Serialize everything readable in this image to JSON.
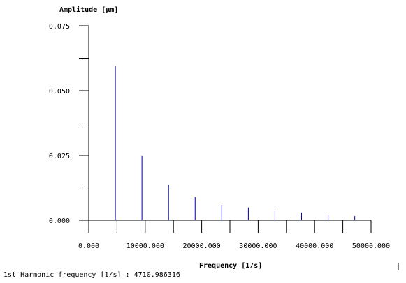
{
  "chart_data": {
    "type": "bar",
    "title": "",
    "xlabel": "Frequency [1/s]",
    "ylabel": "Amplitude [µm]",
    "xlim": [
      0,
      50000
    ],
    "ylim": [
      0,
      0.075
    ],
    "x_tick_values": [
      0,
      10000,
      20000,
      30000,
      40000,
      50000
    ],
    "x_tick_labels": [
      "0.000",
      "10000.000",
      "20000.000",
      "30000.000",
      "40000.000",
      "50000.000"
    ],
    "y_tick_values": [
      0,
      0.025,
      0.05,
      0.075
    ],
    "y_tick_labels": [
      "0.000",
      "0.025",
      "0.050",
      "0.075"
    ],
    "x_minor_ticks": [
      5000,
      15000,
      25000,
      35000,
      45000
    ],
    "y_minor_ticks": [
      0.0125,
      0.0375,
      0.0625
    ],
    "series": [
      {
        "x": [
          4711,
          9422,
          14133,
          18844,
          23555,
          28266,
          32977,
          37688,
          42399,
          47110
        ],
        "values": [
          0.0595,
          0.0248,
          0.0137,
          0.0089,
          0.0059,
          0.0049,
          0.0036,
          0.003,
          0.002,
          0.0016
        ]
      }
    ],
    "grid": false,
    "series_color": "#0000aa"
  },
  "footer": {
    "text": "1st Harmonic frequency [1/s] : 4710.986316"
  }
}
